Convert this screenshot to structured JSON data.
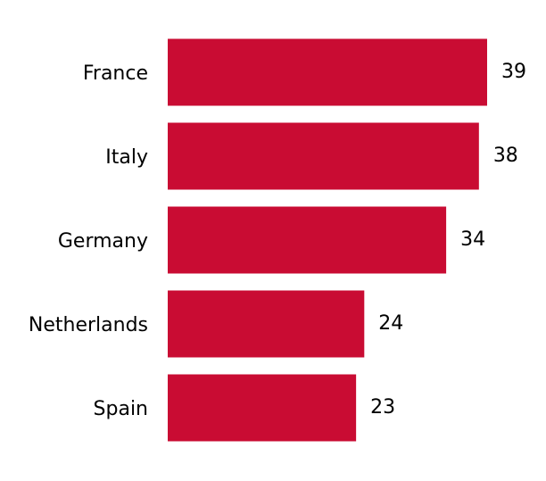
{
  "chart_data": {
    "type": "bar",
    "orientation": "horizontal",
    "categories": [
      "France",
      "Italy",
      "Germany",
      "Netherlands",
      "Spain"
    ],
    "values": [
      39,
      38,
      34,
      24,
      23
    ],
    "color": "#c90c33"
  }
}
